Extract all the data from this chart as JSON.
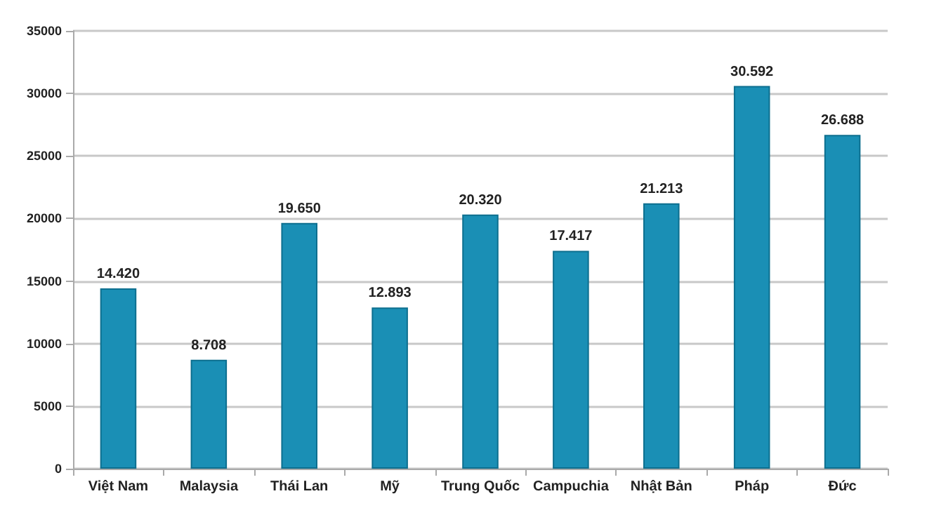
{
  "chart_data": {
    "type": "bar",
    "categories": [
      "Việt Nam",
      "Malaysia",
      "Thái Lan",
      "Mỹ",
      "Trung Quốc",
      "Campuchia",
      "Nhật Bản",
      "Pháp",
      "Đức"
    ],
    "values": [
      14420,
      8708,
      19650,
      12893,
      20320,
      17417,
      21213,
      30592,
      26688
    ],
    "value_labels": [
      "14.420",
      "8.708",
      "19.650",
      "12.893",
      "20.320",
      "17.417",
      "21.213",
      "30.592",
      "26.688"
    ],
    "color": "#1a8fb5",
    "ylim": [
      0,
      35000
    ],
    "yticks": [
      0,
      5000,
      10000,
      15000,
      20000,
      25000,
      30000,
      35000
    ],
    "grid": "y"
  }
}
